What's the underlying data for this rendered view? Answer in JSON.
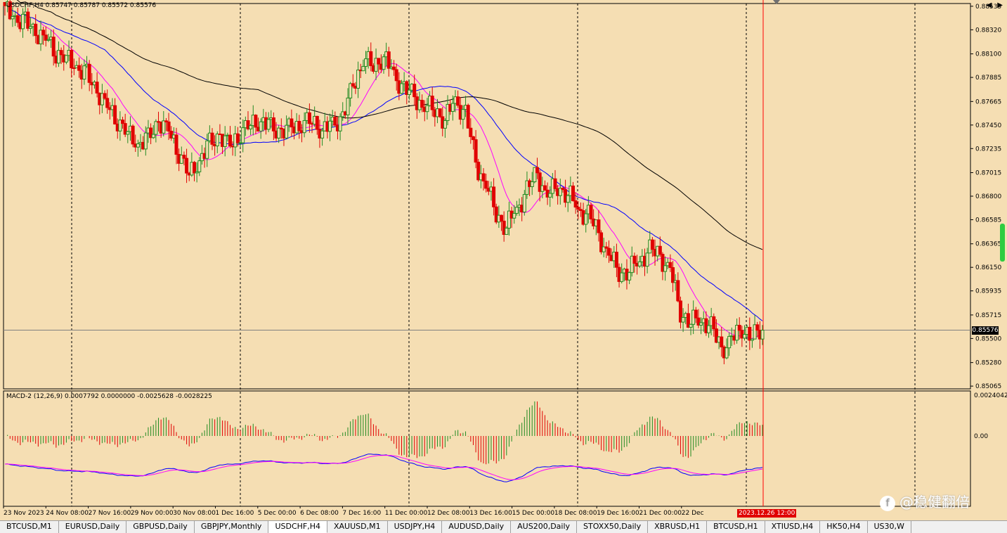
{
  "header": {
    "symbol_info": "USDCHF,H4  0.85747 0.85787 0.85572 0.85576",
    "macd_info": "MACD-2 (12,26,9) 0.0007792 0.0000000 -0.0025628 -0.0028225"
  },
  "price_axis": {
    "ticks": [
      "0.88535",
      "0.88320",
      "0.88100",
      "0.87885",
      "0.87665",
      "0.87450",
      "0.87235",
      "0.87015",
      "0.86800",
      "0.86585",
      "0.86365",
      "0.86150",
      "0.85935",
      "0.85715",
      "0.85500",
      "0.85280",
      "0.85065"
    ],
    "current_price": "0.85576"
  },
  "macd_axis": {
    "ticks": [
      "0.0024042",
      "0.00"
    ]
  },
  "time_axis": {
    "labels": [
      "23 Nov 2023",
      "24 Nov 08:00",
      "27 Nov 16:00",
      "29 Nov 00:00",
      "30 Nov 08:00",
      "1 Dec 16:00",
      "5 Dec 00:00",
      "6 Dec 08:00",
      "7 Dec 16:00",
      "11 Dec 00:00",
      "12 Dec 08:00",
      "13 Dec 16:00",
      "15 Dec 00:00",
      "18 Dec 08:00",
      "19 Dec 16:00",
      "21 Dec 00:00",
      "22 Dec"
    ],
    "cursor_time": "2023.12.26 12:00"
  },
  "colors": {
    "background": "#f5deb3",
    "bull": "#228b22",
    "bear": "#e00000",
    "ma_fast": "#ff00ff",
    "ma_mid": "#0000ff",
    "ma_slow": "#000000",
    "cursor": "#ff0000"
  },
  "tabs": [
    {
      "label": "BTCUSD,M1",
      "active": false
    },
    {
      "label": "EURUSD,Daily",
      "active": false
    },
    {
      "label": "GBPUSD,Daily",
      "active": false
    },
    {
      "label": "GBPJPY,Monthly",
      "active": false
    },
    {
      "label": "USDCHF,H4",
      "active": true
    },
    {
      "label": "XAUUSD,M1",
      "active": false
    },
    {
      "label": "USDJPY,H4",
      "active": false
    },
    {
      "label": "AUDUSD,Daily",
      "active": false
    },
    {
      "label": "AUS200,Daily",
      "active": false
    },
    {
      "label": "STOXX50,Daily",
      "active": false
    },
    {
      "label": "XBRUSD,H1",
      "active": false
    },
    {
      "label": "BTCUSD,H1",
      "active": false
    },
    {
      "label": "XTIUSD,H4",
      "active": false
    },
    {
      "label": "HK50,H4",
      "active": false
    },
    {
      "label": "US30,W",
      "active": false
    }
  ],
  "watermark": {
    "text": "@稳健翻倍"
  },
  "chart_data": {
    "type": "candlestick",
    "symbol": "USDCHF",
    "timeframe": "H4",
    "ohlc_last": {
      "open": 0.85747,
      "high": 0.85787,
      "low": 0.85572,
      "close": 0.85576
    },
    "ylim": [
      0.85065,
      0.88535
    ],
    "close_path": [
      0.885,
      0.8843,
      0.8838,
      0.883,
      0.8824,
      0.8812,
      0.8806,
      0.8798,
      0.879,
      0.8776,
      0.8762,
      0.875,
      0.8738,
      0.8727,
      0.8732,
      0.8748,
      0.874,
      0.872,
      0.87,
      0.8712,
      0.8728,
      0.8735,
      0.8726,
      0.8738,
      0.8747,
      0.8748,
      0.8743,
      0.8738,
      0.8743,
      0.8746,
      0.875,
      0.874,
      0.8745,
      0.8752,
      0.878,
      0.8805,
      0.88,
      0.8808,
      0.879,
      0.8778,
      0.877,
      0.8762,
      0.876,
      0.875,
      0.8767,
      0.8755,
      0.871,
      0.869,
      0.8665,
      0.8652,
      0.8668,
      0.8685,
      0.87,
      0.868,
      0.869,
      0.8682,
      0.8668,
      0.8662,
      0.8645,
      0.8625,
      0.8612,
      0.8612,
      0.8622,
      0.863,
      0.8625,
      0.8612,
      0.8575,
      0.8565,
      0.8568,
      0.856,
      0.854,
      0.8548,
      0.856,
      0.8552,
      0.85576
    ],
    "macd_signal_last": -0.0025628,
    "macd_main_last": -0.0028225
  }
}
